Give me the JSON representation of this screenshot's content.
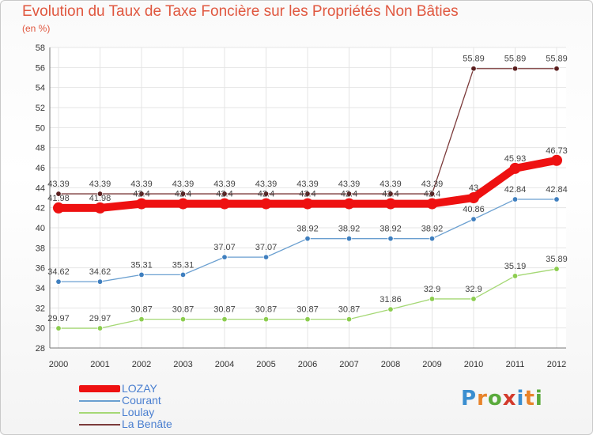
{
  "title": "Evolution du Taux de Taxe Foncière sur les Propriétés Non Bâties",
  "subtitle": "(en %)",
  "logo": {
    "letters": [
      "P",
      "r",
      "o",
      "x",
      "i",
      "t",
      "i"
    ],
    "colors": [
      "#3a8ed0",
      "#e8832a",
      "#5aaa3c",
      "#d33a2c",
      "#3a8ed0",
      "#e8832a",
      "#5aaa3c"
    ]
  },
  "chart_data": {
    "type": "line",
    "title": "Evolution du Taux de Taxe Foncière sur les Propriétés Non Bâties",
    "ylabel": "(en %)",
    "xlabel": "",
    "ylim": [
      28,
      58
    ],
    "yticks": [
      28,
      30,
      32,
      34,
      36,
      38,
      40,
      42,
      44,
      46,
      48,
      50,
      52,
      54,
      56,
      58
    ],
    "categories": [
      "2000",
      "2001",
      "2002",
      "2003",
      "2004",
      "2005",
      "2006",
      "2007",
      "2008",
      "2009",
      "2010",
      "2011",
      "2012"
    ],
    "grid": true,
    "legend_position": "bottom-left",
    "series": [
      {
        "name": "La Benâte",
        "color": "#7b3a3a",
        "dot": "#5a1e1e",
        "values": [
          43.39,
          43.39,
          43.39,
          43.39,
          43.39,
          43.39,
          43.39,
          43.39,
          43.39,
          43.39,
          55.89,
          55.89,
          55.89
        ],
        "labels": [
          "43.39",
          "43.39",
          "43.39",
          "43.39",
          "43.39",
          "43.39",
          "43.39",
          "43.39",
          "43.39",
          "43.39",
          "55.89",
          "55.89",
          "55.89"
        ]
      },
      {
        "name": "Courant",
        "color": "#6a9fd0",
        "dot": "#3f7fbf",
        "values": [
          34.62,
          34.62,
          35.31,
          35.31,
          37.07,
          37.07,
          38.92,
          38.92,
          38.92,
          38.92,
          40.86,
          42.84,
          42.84
        ],
        "labels": [
          "34.62",
          "34.62",
          "35.31",
          "35.31",
          "37.07",
          "37.07",
          "38.92",
          "38.92",
          "38.92",
          "38.92",
          "40.86",
          "42.84",
          "42.84"
        ]
      },
      {
        "name": "Loulay",
        "color": "#a5d875",
        "dot": "#8ccd4f",
        "values": [
          29.97,
          29.97,
          30.87,
          30.87,
          30.87,
          30.87,
          30.87,
          30.87,
          31.86,
          32.9,
          32.9,
          35.19,
          35.89
        ],
        "labels": [
          "29.97",
          "29.97",
          "30.87",
          "30.87",
          "30.87",
          "30.87",
          "30.87",
          "30.87",
          "31.86",
          "32.9",
          "32.9",
          "35.19",
          "35.89"
        ]
      },
      {
        "name": "LOZAY",
        "color": "#ee1111",
        "dot": "#ee1111",
        "values": [
          41.98,
          41.98,
          42.4,
          42.4,
          42.4,
          42.4,
          42.4,
          42.4,
          42.4,
          42.4,
          43,
          45.93,
          46.73
        ],
        "labels": [
          "41.98",
          "41.98",
          "42.4",
          "42.4",
          "42.4",
          "42.4",
          "42.4",
          "42.4",
          "42.4",
          "42.4",
          "43",
          "45.93",
          "46.73"
        ]
      }
    ],
    "legend": [
      {
        "name": "LOZAY",
        "color": "#ee1111",
        "text_color": "#4a7fd0"
      },
      {
        "name": "Courant",
        "color": "#6a9fd0",
        "text_color": "#4a7fd0"
      },
      {
        "name": "Loulay",
        "color": "#a5d875",
        "text_color": "#4a7fd0"
      },
      {
        "name": "La Benâte",
        "color": "#7b3a3a",
        "text_color": "#4a7fd0"
      }
    ]
  }
}
